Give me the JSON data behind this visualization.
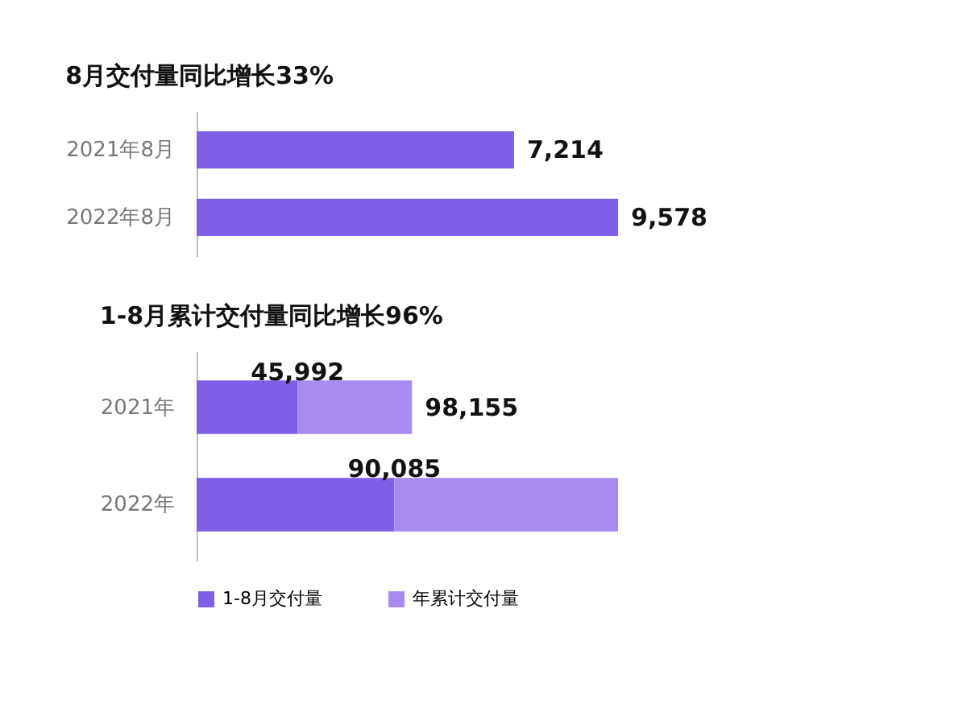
{
  "chart_data": [
    {
      "type": "bar",
      "orientation": "horizontal",
      "title": "8月交付量同比增长33%",
      "categories": [
        "2021年8月",
        "2022年8月"
      ],
      "values": [
        7214,
        9578
      ],
      "value_labels": [
        "7,214",
        "9,578"
      ],
      "color": "#7f5fe6",
      "tick_labels": "y"
    },
    {
      "type": "bar",
      "orientation": "horizontal",
      "stacked": true,
      "title": "1-8月累计交付量同比增长96%",
      "categories": [
        "2021年",
        "2022年"
      ],
      "series": [
        {
          "name": "1-8月交付量",
          "color": "#7f5fe6",
          "values": [
            45992,
            90085
          ],
          "value_labels": [
            "45,992",
            "90,085"
          ]
        },
        {
          "name": "年累计交付量",
          "color": "#a78bf0",
          "values": [
            52163,
            102000
          ]
        }
      ],
      "totals": [
        "98,155",
        null
      ],
      "tick_labels": "y",
      "legend": "bottom"
    }
  ]
}
